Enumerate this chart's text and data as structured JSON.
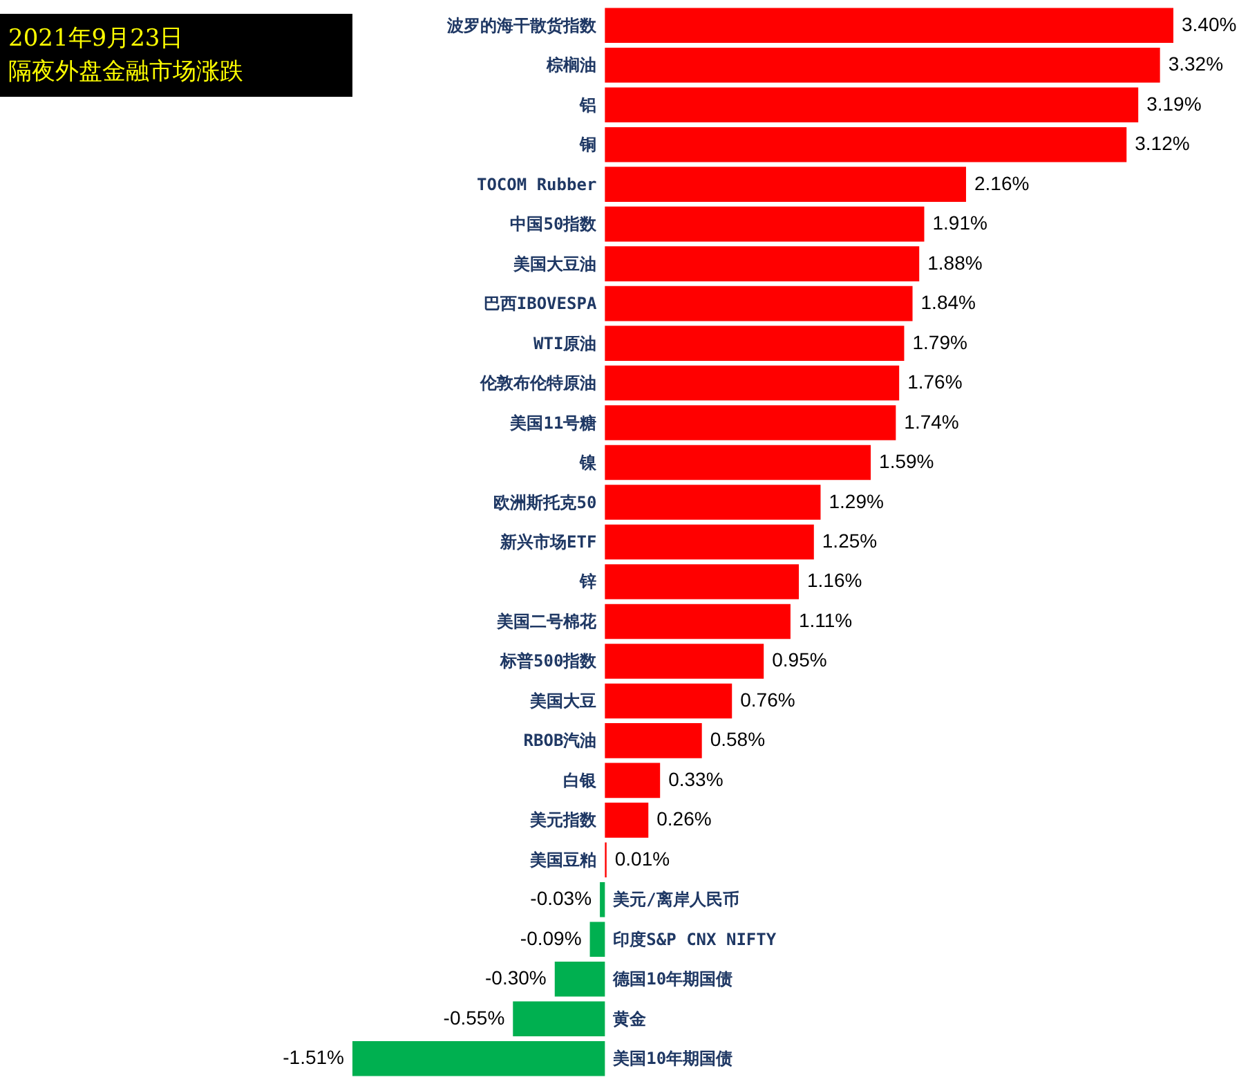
{
  "chart_data": {
    "type": "bar",
    "orientation": "horizontal",
    "title": "2021年9月23日",
    "subtitle": "隔夜外盘金融市场涨跌",
    "categories": [
      "波罗的海干散货指数",
      "棕榈油",
      "铝",
      "铜",
      "TOCOM Rubber",
      "中国50指数",
      "美国大豆油",
      "巴西IBOVESPA",
      "WTI原油",
      "伦敦布伦特原油",
      "美国11号糖",
      "镍",
      "欧洲斯托克50",
      "新兴市场ETF",
      "锌",
      "美国二号棉花",
      "标普500指数",
      "美国大豆",
      "RBOB汽油",
      "白银",
      "美元指数",
      "美国豆粕",
      "美元/离岸人民币",
      "印度S&P CNX NIFTY",
      "德国10年期国债",
      "黄金",
      "美国10年期国债"
    ],
    "values": [
      3.4,
      3.32,
      3.19,
      3.12,
      2.16,
      1.91,
      1.88,
      1.84,
      1.79,
      1.76,
      1.74,
      1.59,
      1.29,
      1.25,
      1.16,
      1.11,
      0.95,
      0.76,
      0.58,
      0.33,
      0.26,
      0.01,
      -0.03,
      -0.09,
      -0.3,
      -0.55,
      -1.51
    ],
    "value_labels": [
      "3.40%",
      "3.32%",
      "3.19%",
      "3.12%",
      "2.16%",
      "1.91%",
      "1.88%",
      "1.84%",
      "1.79%",
      "1.76%",
      "1.74%",
      "1.59%",
      "1.29%",
      "1.25%",
      "1.16%",
      "1.11%",
      "0.95%",
      "0.76%",
      "0.58%",
      "0.33%",
      "0.26%",
      "0.01%",
      "-0.03%",
      "-0.09%",
      "-0.30%",
      "-0.55%",
      "-1.51%"
    ],
    "colors": [
      "#ff0000",
      "#ff0000",
      "#ff0000",
      "#ff0000",
      "#ff0000",
      "#ff0000",
      "#ff0000",
      "#ff0000",
      "#ff0000",
      "#ff0000",
      "#ff0000",
      "#ff0000",
      "#ff0000",
      "#ff0000",
      "#ff0000",
      "#ff0000",
      "#ff0000",
      "#ff0000",
      "#ff0000",
      "#ff0000",
      "#ff0000",
      "#ff0000",
      "#00b050",
      "#00b050",
      "#00b050",
      "#00b050",
      "#00b050"
    ]
  }
}
